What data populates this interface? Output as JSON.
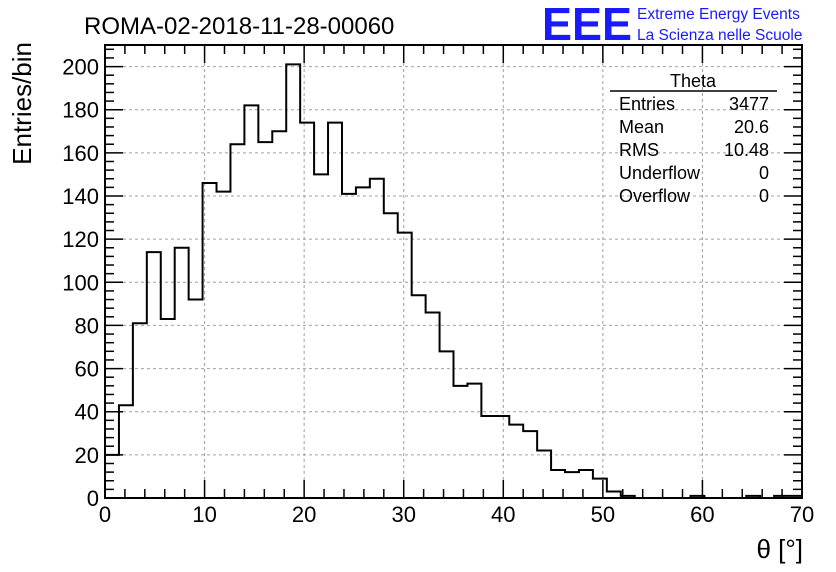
{
  "chart_data": {
    "type": "bar",
    "title": "ROMA-02-2018-11-28-00060",
    "xlabel": "θ [°]",
    "ylabel": "Entries/bin",
    "xlim": [
      0,
      70
    ],
    "ylim": [
      0,
      210
    ],
    "grid": true,
    "x_ticks": [
      0,
      10,
      20,
      30,
      40,
      50,
      60,
      70
    ],
    "y_ticks": [
      0,
      20,
      40,
      60,
      80,
      100,
      120,
      140,
      160,
      180,
      200
    ],
    "bin_width": 1.4,
    "values": [
      20,
      43,
      81,
      114,
      83,
      116,
      92,
      146,
      142,
      164,
      182,
      165,
      170,
      201,
      174,
      150,
      174,
      141,
      144,
      148,
      132,
      123,
      94,
      86,
      68,
      52,
      53,
      38,
      38,
      34,
      31,
      22,
      13,
      12,
      13,
      9,
      3,
      1,
      0,
      0,
      0,
      0,
      1,
      0,
      0,
      0,
      1,
      0,
      1,
      1
    ]
  },
  "stats_box": {
    "title": "Theta",
    "rows": [
      {
        "label": "Entries",
        "value": "3477"
      },
      {
        "label": "Mean",
        "value": "20.6"
      },
      {
        "label": "RMS",
        "value": "10.48"
      },
      {
        "label": "Underflow",
        "value": "0"
      },
      {
        "label": "Overflow",
        "value": "0"
      }
    ]
  },
  "logo": {
    "mark": "EEE",
    "line1": "Extreme Energy Events",
    "line2": "La Scienza nelle Scuole",
    "color": "#1a1aff"
  }
}
